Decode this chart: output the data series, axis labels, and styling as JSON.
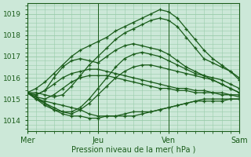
{
  "xlabel": "Pression niveau de la mer( hPa )",
  "ylim": [
    1013.5,
    1019.5
  ],
  "xlim": [
    0,
    72
  ],
  "yticks": [
    1014,
    1015,
    1016,
    1017,
    1018,
    1019
  ],
  "xtick_positions": [
    0,
    24,
    48,
    72
  ],
  "xtick_labels": [
    "Mer",
    "Jeu",
    "Ven",
    "Sam"
  ],
  "bg_color": "#cce8d8",
  "grid_color": "#99ccaa",
  "line_color": "#1a5c1a",
  "series": [
    {
      "x": [
        0,
        3,
        6,
        9,
        12,
        15,
        18,
        21,
        24,
        27,
        30,
        33,
        36,
        39,
        42,
        45,
        48,
        51,
        54,
        57,
        60,
        63,
        66,
        69,
        72
      ],
      "y": [
        1015.3,
        1015.0,
        1014.9,
        1014.8,
        1014.7,
        1014.6,
        1014.5,
        1014.3,
        1014.2,
        1014.2,
        1014.2,
        1014.2,
        1014.2,
        1014.3,
        1014.4,
        1014.5,
        1014.6,
        1014.7,
        1014.8,
        1014.9,
        1014.9,
        1014.9,
        1014.9,
        1015.0,
        1015.0
      ]
    },
    {
      "x": [
        0,
        3,
        6,
        9,
        12,
        15,
        18,
        21,
        24,
        27,
        30,
        33,
        36,
        39,
        42,
        45,
        48,
        51,
        54,
        57,
        60,
        63,
        66,
        69,
        72
      ],
      "y": [
        1015.3,
        1015.0,
        1014.8,
        1014.5,
        1014.3,
        1014.2,
        1014.2,
        1014.1,
        1014.1,
        1014.2,
        1014.2,
        1014.3,
        1014.4,
        1014.4,
        1014.4,
        1014.5,
        1014.6,
        1014.7,
        1014.8,
        1014.9,
        1015.0,
        1015.0,
        1015.0,
        1015.0,
        1015.0
      ]
    },
    {
      "x": [
        0,
        3,
        6,
        9,
        12,
        15,
        18,
        21,
        24,
        27,
        30,
        33,
        36,
        39,
        42,
        45,
        48,
        51,
        54,
        57,
        60,
        63,
        66,
        69,
        72
      ],
      "y": [
        1015.3,
        1015.1,
        1015.0,
        1015.2,
        1015.5,
        1015.8,
        1016.0,
        1016.1,
        1016.1,
        1016.1,
        1016.0,
        1015.9,
        1015.8,
        1015.7,
        1015.6,
        1015.5,
        1015.5,
        1015.4,
        1015.4,
        1015.3,
        1015.3,
        1015.3,
        1015.2,
        1015.2,
        1015.1
      ]
    },
    {
      "x": [
        0,
        3,
        6,
        9,
        12,
        15,
        18,
        21,
        24,
        27,
        30,
        33,
        36,
        39,
        42,
        45,
        48,
        51,
        54,
        57,
        60,
        63,
        66,
        69,
        72
      ],
      "y": [
        1015.3,
        1015.2,
        1015.4,
        1015.7,
        1016.0,
        1016.2,
        1016.3,
        1016.4,
        1016.4,
        1016.3,
        1016.2,
        1016.1,
        1016.0,
        1015.9,
        1015.8,
        1015.7,
        1015.6,
        1015.5,
        1015.5,
        1015.4,
        1015.4,
        1015.3,
        1015.3,
        1015.2,
        1015.2
      ]
    },
    {
      "x": [
        0,
        3,
        6,
        9,
        12,
        15,
        18,
        21,
        24,
        27,
        30,
        33,
        36,
        39,
        42,
        45,
        48,
        51,
        54,
        57,
        60,
        63,
        66,
        69,
        72
      ],
      "y": [
        1015.3,
        1015.0,
        1014.7,
        1014.5,
        1014.4,
        1014.3,
        1014.5,
        1014.8,
        1015.2,
        1015.6,
        1016.0,
        1016.3,
        1016.5,
        1016.6,
        1016.6,
        1016.5,
        1016.4,
        1016.3,
        1016.2,
        1016.1,
        1016.0,
        1015.9,
        1015.7,
        1015.5,
        1015.3
      ]
    },
    {
      "x": [
        0,
        3,
        6,
        9,
        12,
        15,
        18,
        21,
        24,
        27,
        30,
        33,
        36,
        39,
        42,
        45,
        48,
        51,
        54,
        57,
        60,
        63,
        66,
        69,
        72
      ],
      "y": [
        1015.3,
        1015.1,
        1014.8,
        1014.6,
        1014.4,
        1014.4,
        1014.6,
        1015.0,
        1015.5,
        1016.0,
        1016.5,
        1016.9,
        1017.1,
        1017.2,
        1017.1,
        1017.0,
        1016.8,
        1016.6,
        1016.4,
        1016.2,
        1016.1,
        1015.9,
        1015.7,
        1015.5,
        1015.3
      ]
    },
    {
      "x": [
        0,
        3,
        6,
        9,
        12,
        15,
        18,
        21,
        24,
        27,
        30,
        33,
        36,
        39,
        42,
        45,
        48,
        51,
        54,
        57,
        60,
        63,
        66,
        69,
        72
      ],
      "y": [
        1015.3,
        1015.3,
        1015.2,
        1015.1,
        1015.2,
        1015.6,
        1016.1,
        1016.6,
        1017.0,
        1017.4,
        1017.8,
        1018.1,
        1018.3,
        1018.5,
        1018.7,
        1018.8,
        1018.7,
        1018.4,
        1017.9,
        1017.4,
        1016.9,
        1016.7,
        1016.5,
        1016.3,
        1016.0
      ]
    },
    {
      "x": [
        0,
        3,
        6,
        9,
        12,
        15,
        18,
        21,
        24,
        27,
        30,
        33,
        36,
        39,
        42,
        45,
        48,
        51,
        54,
        57,
        60,
        63,
        66,
        69,
        72
      ],
      "y": [
        1015.3,
        1015.5,
        1015.8,
        1016.2,
        1016.6,
        1017.0,
        1017.3,
        1017.5,
        1017.7,
        1017.9,
        1018.2,
        1018.4,
        1018.6,
        1018.8,
        1019.0,
        1019.2,
        1019.1,
        1018.8,
        1018.3,
        1017.8,
        1017.3,
        1016.9,
        1016.6,
        1016.3,
        1015.9
      ]
    },
    {
      "x": [
        0,
        3,
        6,
        9,
        12,
        15,
        18,
        21,
        24,
        27,
        30,
        33,
        36,
        39,
        42,
        45,
        48,
        51,
        54,
        57,
        60,
        63,
        66,
        69,
        72
      ],
      "y": [
        1015.3,
        1015.2,
        1015.4,
        1016.0,
        1016.5,
        1016.8,
        1016.9,
        1016.8,
        1016.7,
        1017.0,
        1017.3,
        1017.5,
        1017.6,
        1017.5,
        1017.4,
        1017.3,
        1017.1,
        1016.8,
        1016.5,
        1016.3,
        1016.1,
        1016.0,
        1015.9,
        1015.7,
        1015.5
      ]
    }
  ]
}
